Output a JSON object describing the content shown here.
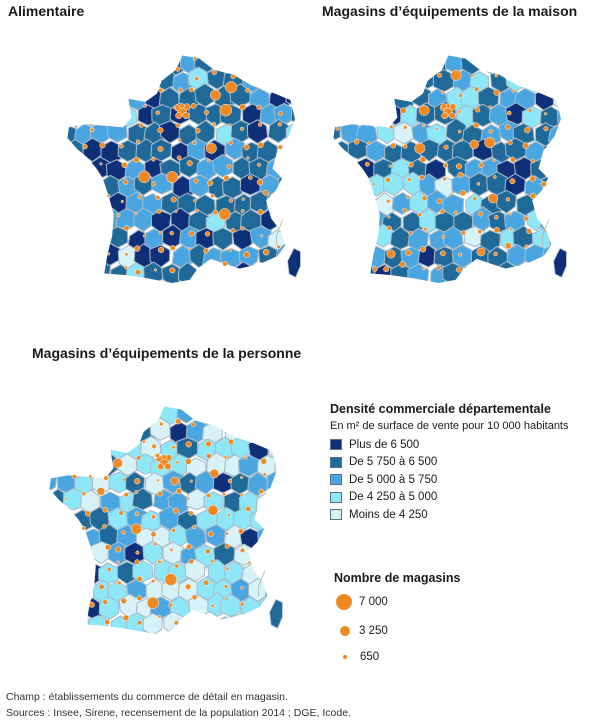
{
  "maps": [
    {
      "title": "Alimentaire",
      "density_level_shares": {
        "plus_de_6500": 0.18,
        "de_5750_a_6500": 0.46,
        "de_5000_a_5750": 0.28,
        "de_4250_a_5000": 0.07,
        "moins_de_4250": 0.01
      }
    },
    {
      "title": "Magasins d’équipements de la maison",
      "density_level_shares": {
        "plus_de_6500": 0.05,
        "de_5750_a_6500": 0.38,
        "de_5000_a_5750": 0.38,
        "de_4250_a_5000": 0.16,
        "moins_de_4250": 0.03
      }
    },
    {
      "title": "Magasins d’équipements de la personne",
      "density_level_shares": {
        "plus_de_6500": 0.03,
        "de_5750_a_6500": 0.12,
        "de_5000_a_5750": 0.24,
        "de_4250_a_5000": 0.35,
        "moins_de_4250": 0.26
      }
    }
  ],
  "legend": {
    "title": "Densité commerciale départementale",
    "subtitle": "En m² de surface de vente pour 10 000 habitants",
    "classes": [
      {
        "label": "Plus de 6 500",
        "color": "#0f2f78"
      },
      {
        "label": "De 5 750 à 6 500",
        "color": "#1f6a98"
      },
      {
        "label": "De 5 000 à 5 750",
        "color": "#4aa6e0"
      },
      {
        "label": "De 4 250 à 5 000",
        "color": "#8ee7f6"
      },
      {
        "label": "Moins de 4 250",
        "color": "#d8f3f7"
      }
    ]
  },
  "size_legend": {
    "title": "Nombre de magasins",
    "entries": [
      {
        "label": "7 000",
        "value": 7000
      },
      {
        "label": "3 250",
        "value": 3250
      },
      {
        "label": "650",
        "value": 650
      }
    ]
  },
  "bubble_color": "#ee8a25",
  "border_color": "#a9b9c8",
  "footnotes": {
    "scope": "Champ : établissements du commerce de détail en magasin.",
    "sources": "Sources : Insee, Sirene, recensement de la population 2014 ; DGE, Icode."
  }
}
